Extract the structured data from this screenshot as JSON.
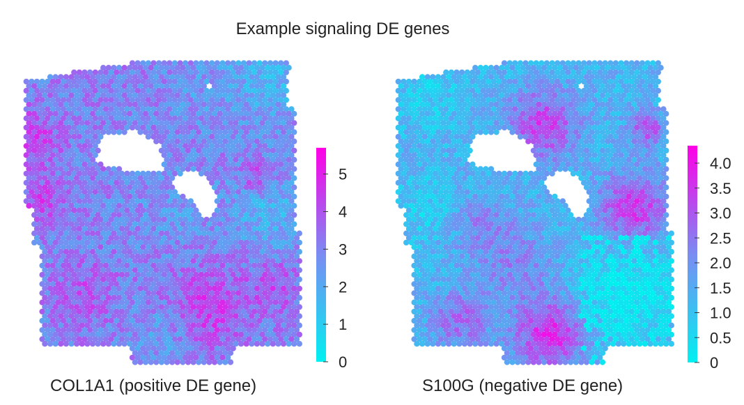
{
  "figure": {
    "title": "Example signaling DE genes"
  },
  "colors": {
    "colormap_low": "#00f0f0",
    "colormap_mid": "#7a8cf2",
    "colormap_high": "#ff00e6",
    "background": "#ffffff"
  },
  "chart_data": [
    {
      "type": "heatmap",
      "gene": "COL1A1",
      "title": "COL1A1 (positive DE gene)",
      "value_range": [
        0,
        5.7
      ],
      "colorbar_ticks": [
        "0",
        "1",
        "2",
        "3",
        "4",
        "5"
      ],
      "colorbar_tick_values": [
        0,
        1,
        2,
        3,
        4,
        5
      ],
      "typical_value": 3.0,
      "description_regions": [
        {
          "area": "left edge",
          "value": 4.0
        },
        {
          "area": "upper right",
          "value": 2.0
        },
        {
          "area": "middle right",
          "value": 1.8
        },
        {
          "area": "lower center",
          "value": 4.3
        },
        {
          "area": "center",
          "value": 2.5
        }
      ]
    },
    {
      "type": "heatmap",
      "gene": "S100G",
      "title": "S100G (negative DE gene)",
      "value_range": [
        0,
        4.35
      ],
      "colorbar_ticks": [
        "0",
        "0.5",
        "1.0",
        "1.5",
        "2.0",
        "2.5",
        "3.0",
        "3.5",
        "4.0"
      ],
      "colorbar_tick_values": [
        0,
        0.5,
        1.0,
        1.5,
        2.0,
        2.5,
        3.0,
        3.5,
        4.0
      ],
      "typical_value": 1.3,
      "description_regions": [
        {
          "area": "upper center",
          "value": 3.2
        },
        {
          "area": "right middle",
          "value": 3.5
        },
        {
          "area": "lower center",
          "value": 3.8
        },
        {
          "area": "lower right",
          "value": 0.3
        },
        {
          "area": "top left",
          "value": 0.6
        }
      ]
    }
  ]
}
